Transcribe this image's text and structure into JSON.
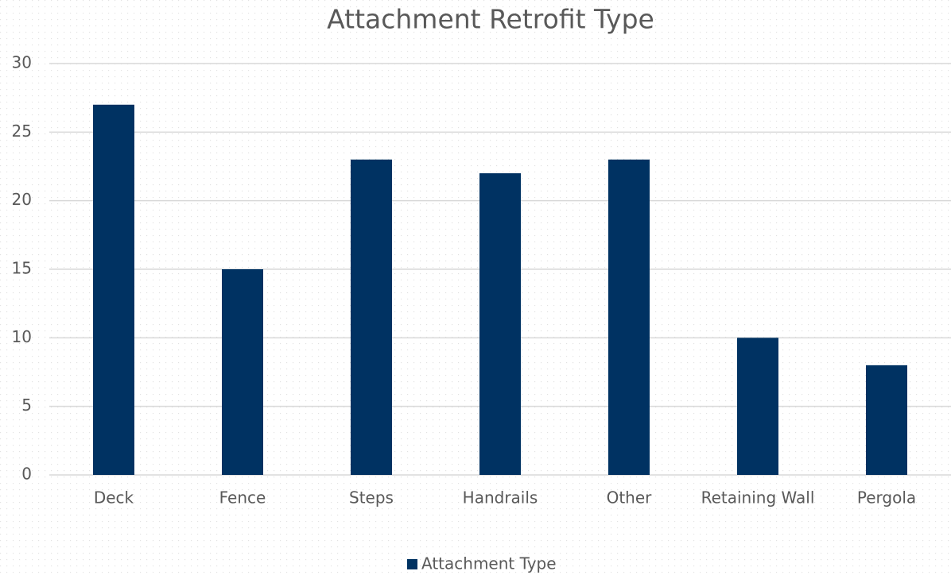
{
  "chart_data": {
    "type": "bar",
    "title": "Attachment Retrofit Type",
    "categories": [
      "Deck",
      "Fence",
      "Steps",
      "Handrails",
      "Other",
      "Retaining Wall",
      "Pergola"
    ],
    "series": [
      {
        "name": "Attachment Type",
        "color": "#003262",
        "values": [
          27,
          15,
          23,
          22,
          23,
          10,
          8
        ]
      }
    ],
    "ylim": [
      0,
      30
    ],
    "yticks": [
      0,
      5,
      10,
      15,
      20,
      25,
      30
    ],
    "grid": true,
    "legend": "bottom"
  }
}
